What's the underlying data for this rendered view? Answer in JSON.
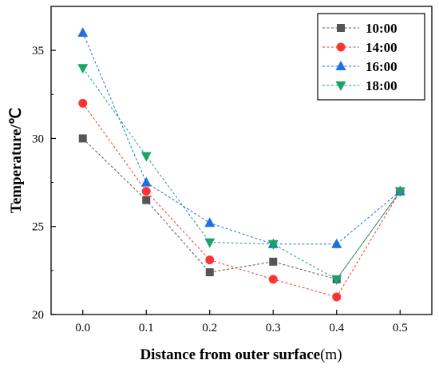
{
  "chart_data": {
    "type": "line",
    "xlabel_main": "Distance from outer surface",
    "xlabel_unit": "(m)",
    "ylabel": "Temperature/℃",
    "x": [
      0.0,
      0.1,
      0.2,
      0.3,
      0.4,
      0.5
    ],
    "x_tick_labels": [
      "0.0",
      "0.1",
      "0.2",
      "0.3",
      "0.4",
      "0.5"
    ],
    "y_ticks": [
      20,
      25,
      30,
      35
    ],
    "y_tick_labels": [
      "20",
      "25",
      "30",
      "35"
    ],
    "xlim": [
      -0.05,
      0.55
    ],
    "ylim": [
      20,
      37.5
    ],
    "grid": false,
    "legend_position": "top-right",
    "series": [
      {
        "name": "10:00",
        "color": "#555555",
        "marker": "square",
        "values": [
          30,
          26.5,
          22.4,
          23,
          22,
          27
        ]
      },
      {
        "name": "14:00",
        "color": "#ff3333",
        "marker": "circle",
        "values": [
          32,
          27,
          23.1,
          22,
          21,
          27
        ]
      },
      {
        "name": "16:00",
        "color": "#1f6fde",
        "marker": "triangle-up",
        "values": [
          36,
          27.5,
          25.2,
          24,
          24,
          27
        ]
      },
      {
        "name": "18:00",
        "color": "#1aa36a",
        "marker": "triangle-down",
        "values": [
          34,
          29,
          24.1,
          24,
          22,
          27
        ]
      }
    ]
  }
}
